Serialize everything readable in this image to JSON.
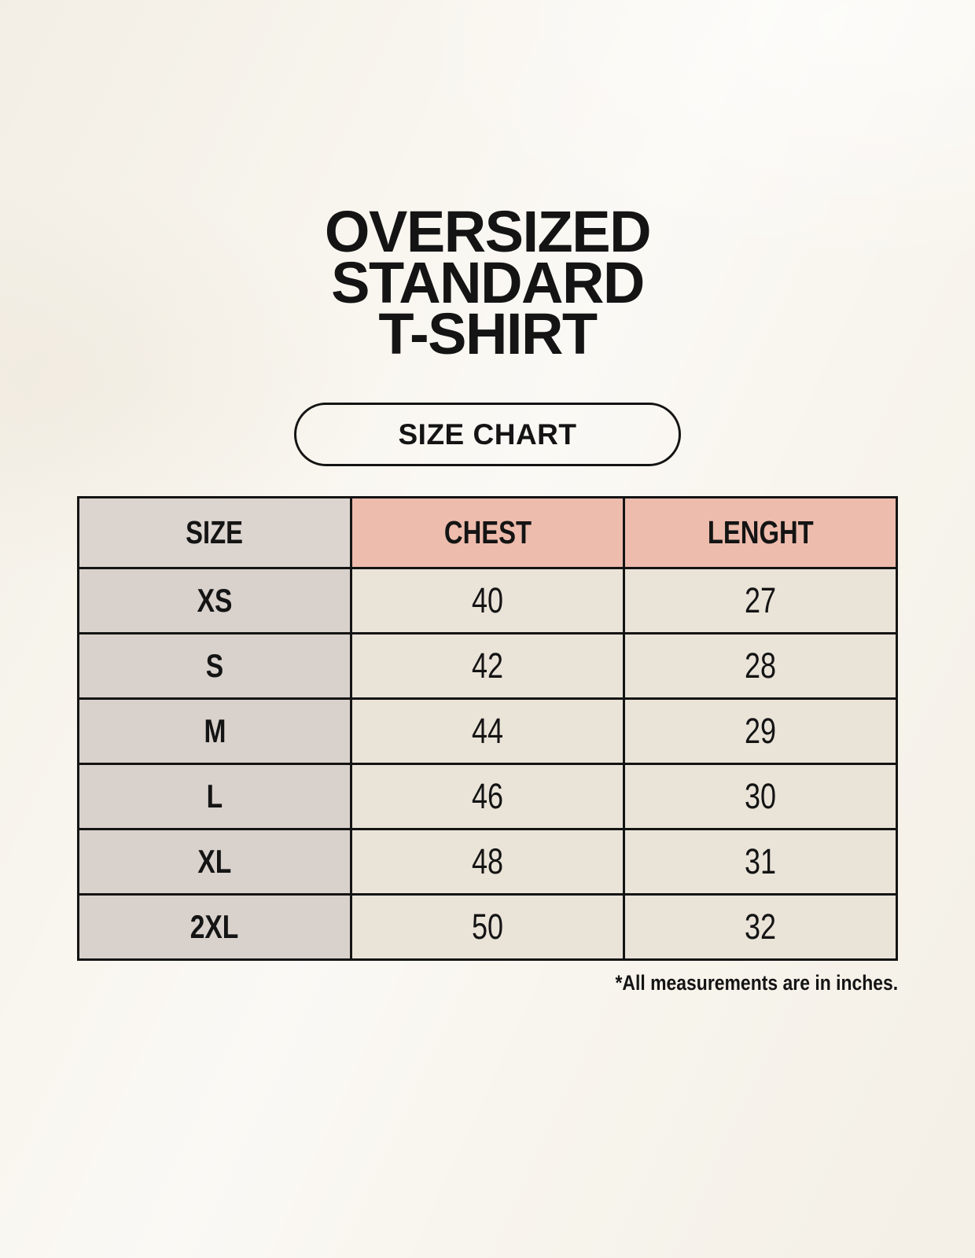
{
  "header": {
    "title_lines": [
      "OVERSIZED",
      "STANDARD",
      "T-SHIRT"
    ],
    "badge_label": "SIZE CHART"
  },
  "chart_data": {
    "type": "table",
    "title": "OVERSIZED STANDARD T-SHIRT",
    "subtitle": "SIZE CHART",
    "columns": [
      "SIZE",
      "CHEST",
      "LENGHT"
    ],
    "rows": [
      [
        "XS",
        "40",
        "27"
      ],
      [
        "S",
        "42",
        "28"
      ],
      [
        "M",
        "44",
        "29"
      ],
      [
        "L",
        "46",
        "30"
      ],
      [
        "XL",
        "48",
        "31"
      ],
      [
        "2XL",
        "50",
        "32"
      ]
    ],
    "units_note": "*All measurements are in inches."
  },
  "colors": {
    "page-bg": "#f8f5ee",
    "header-pink": "#edbcad",
    "header-gray": "#dbd4cf",
    "row-label-gray": "#d8d1cc",
    "cell-cream": "#eae3d8",
    "border-black": "#141414",
    "text": "#141414"
  }
}
